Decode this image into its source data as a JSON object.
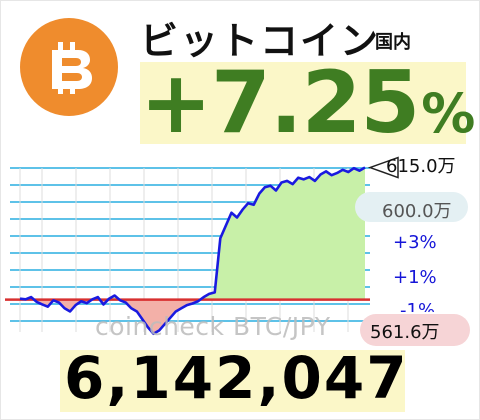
{
  "header": {
    "title": "ビットコイン",
    "region": "国内",
    "coin_symbol": "bitcoin-icon",
    "change_value": "+7.25",
    "change_unit": "%"
  },
  "chart": {
    "watermark": "coincheck BTC/JPY",
    "labels": {
      "max": "615.0万",
      "mid": "600.0万",
      "plus3": "+3%",
      "plus1": "+1%",
      "minus1": "-1%",
      "min": "561.6万"
    },
    "colors": {
      "line": "#1a1ae0",
      "grid": "#5ec2e8",
      "baseline": "#d83030",
      "fill_up": "#c8f0a8",
      "fill_down": "#f3b0a8",
      "positive": "#3f7d22"
    }
  },
  "price": {
    "value": "6,142,047"
  },
  "chart_data": {
    "type": "line",
    "y": [
      5730000,
      5728000,
      5735000,
      5720000,
      5712000,
      5705000,
      5725000,
      5718000,
      5700000,
      5690000,
      5710000,
      5722000,
      5716000,
      5728000,
      5735000,
      5712000,
      5730000,
      5740000,
      5725000,
      5718000,
      5700000,
      5690000,
      5665000,
      5640000,
      5620000,
      5630000,
      5650000,
      5670000,
      5690000,
      5700000,
      5710000,
      5715000,
      5722000,
      5735000,
      5745000,
      5750000,
      5920000,
      5960000,
      6000000,
      5985000,
      6010000,
      6030000,
      6025000,
      6060000,
      6080000,
      6085000,
      6070000,
      6095000,
      6100000,
      6090000,
      6110000,
      6105000,
      6112000,
      6100000,
      6120000,
      6130000,
      6118000,
      6125000,
      6135000,
      6128000,
      6140000,
      6132000,
      6142000
    ],
    "baseline": 5727000,
    "ylim": [
      5616000,
      6150000
    ]
  }
}
